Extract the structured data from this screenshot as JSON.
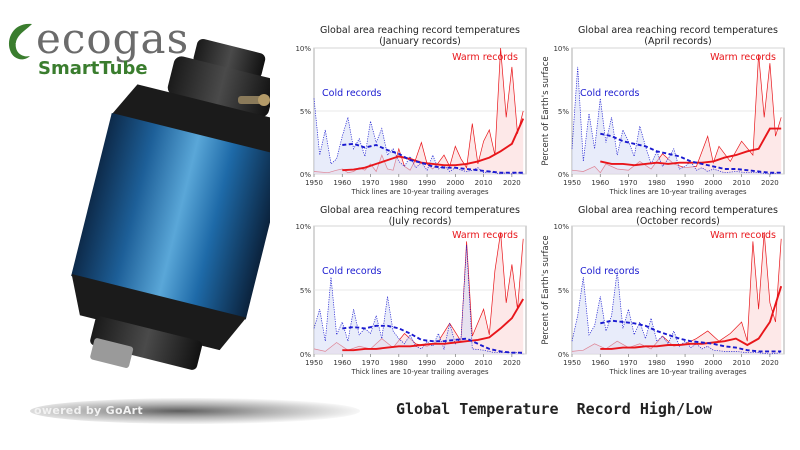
{
  "logo": {
    "word": "ecogas",
    "sub": "SmartTube",
    "mark_color": "#3a7d2e"
  },
  "watermark": "owered by GoArt",
  "caption": "Global Temperature  Record High/Low",
  "colors": {
    "warm": "#e8161b",
    "cold": "#1a1ad0",
    "warm_fill": "#fbd6d6",
    "cold_fill": "#d6dcf6"
  },
  "chart_data": [
    {
      "type": "line",
      "title": "Global area reaching record temperatures",
      "subtitle": "(January records)",
      "ylabel": "",
      "xlabel": "Thick lines are 10-year trailing averages",
      "xlim": [
        1950,
        2025
      ],
      "ylim": [
        0,
        10
      ],
      "xticks": [
        "1950",
        "1960",
        "1970",
        "1980",
        "1990",
        "2000",
        "2010",
        "2020"
      ],
      "yticks": [
        "0%",
        "5%",
        "10%"
      ],
      "annotations": [
        "Warm records",
        "Cold records"
      ],
      "series": [
        {
          "name": "Warm records",
          "style": "thin",
          "x": [
            1950,
            1955,
            1958,
            1960,
            1962,
            1964,
            1966,
            1968,
            1970,
            1972,
            1974,
            1976,
            1978,
            1980,
            1982,
            1984,
            1986,
            1988,
            1990,
            1992,
            1994,
            1996,
            1998,
            2000,
            2002,
            2004,
            2006,
            2008,
            2010,
            2012,
            2014,
            2016,
            2018,
            2020,
            2022,
            2024
          ],
          "y": [
            0.2,
            0.1,
            0.3,
            0.4,
            0.1,
            0.2,
            0.5,
            0.3,
            0.8,
            0.2,
            1.5,
            0.4,
            0.3,
            2.0,
            0.6,
            0.3,
            1.2,
            2.5,
            0.8,
            0.4,
            0.9,
            1.5,
            0.6,
            2.2,
            1.2,
            0.5,
            4.0,
            0.8,
            2.6,
            3.5,
            1.5,
            10.0,
            4.5,
            8.5,
            3.2,
            5.0
          ]
        },
        {
          "name": "Cold records",
          "style": "thin",
          "x": [
            1950,
            1952,
            1954,
            1956,
            1958,
            1960,
            1962,
            1964,
            1966,
            1968,
            1970,
            1972,
            1974,
            1976,
            1978,
            1980,
            1982,
            1984,
            1986,
            1988,
            1990,
            1992,
            1994,
            1996,
            1998,
            2000,
            2002,
            2004,
            2006,
            2008,
            2010,
            2012,
            2014,
            2016,
            2018,
            2020,
            2022,
            2024
          ],
          "y": [
            6.0,
            1.5,
            3.5,
            0.8,
            1.2,
            3.0,
            4.5,
            2.0,
            2.8,
            1.4,
            4.2,
            2.5,
            3.6,
            1.5,
            2.0,
            1.0,
            0.6,
            1.4,
            0.5,
            0.9,
            0.3,
            1.5,
            0.4,
            0.7,
            0.2,
            0.5,
            0.3,
            0.2,
            0.3,
            0.5,
            0.1,
            0.2,
            0.1,
            0.0,
            0.1,
            0.0,
            0.1,
            0.0
          ]
        },
        {
          "name": "Warm records",
          "style": "thick",
          "x": [
            1960,
            1964,
            1968,
            1972,
            1976,
            1980,
            1984,
            1988,
            1992,
            1996,
            2000,
            2004,
            2008,
            2012,
            2016,
            2020,
            2024
          ],
          "y": [
            0.3,
            0.35,
            0.5,
            0.8,
            1.1,
            1.4,
            1.2,
            0.9,
            0.8,
            0.7,
            0.7,
            0.8,
            1.0,
            1.3,
            1.8,
            2.4,
            4.4
          ]
        },
        {
          "name": "Cold records",
          "style": "thick",
          "x": [
            1960,
            1964,
            1968,
            1972,
            1976,
            1980,
            1984,
            1988,
            1992,
            1996,
            2000,
            2004,
            2008,
            2012,
            2016,
            2020,
            2024
          ],
          "y": [
            2.3,
            2.4,
            2.1,
            2.3,
            1.9,
            1.6,
            1.1,
            0.9,
            0.6,
            0.5,
            0.5,
            0.4,
            0.3,
            0.2,
            0.1,
            0.1,
            0.1
          ]
        }
      ]
    },
    {
      "type": "line",
      "title": "Global area reaching record temperatures",
      "subtitle": "(April records)",
      "ylabel": "Percent of Earth's surface",
      "xlabel": "Thick lines are 10-year trailing averages",
      "xlim": [
        1950,
        2025
      ],
      "ylim": [
        0,
        10
      ],
      "xticks": [
        "1950",
        "1960",
        "1970",
        "1980",
        "1990",
        "2000",
        "2010",
        "2020"
      ],
      "yticks": [
        "0%",
        "5%",
        "10%"
      ],
      "annotations": [
        "Warm records",
        "Cold records"
      ],
      "series": [
        {
          "name": "Warm records",
          "style": "thin",
          "x": [
            1950,
            1954,
            1958,
            1960,
            1962,
            1966,
            1970,
            1974,
            1978,
            1982,
            1986,
            1990,
            1994,
            1998,
            2000,
            2002,
            2006,
            2010,
            2014,
            2016,
            2018,
            2020,
            2022,
            2024
          ],
          "y": [
            0.3,
            0.2,
            0.6,
            0.1,
            0.8,
            0.4,
            0.3,
            1.0,
            0.4,
            1.6,
            0.8,
            0.5,
            0.6,
            3.0,
            0.9,
            2.2,
            1.0,
            2.6,
            1.5,
            9.5,
            4.5,
            8.8,
            3.0,
            4.5
          ]
        },
        {
          "name": "Cold records",
          "style": "thin",
          "x": [
            1950,
            1952,
            1954,
            1956,
            1958,
            1960,
            1962,
            1964,
            1966,
            1968,
            1970,
            1972,
            1974,
            1976,
            1978,
            1980,
            1982,
            1984,
            1986,
            1988,
            1990,
            1992,
            1994,
            1996,
            1998,
            2000,
            2004,
            2008,
            2012,
            2016,
            2020,
            2024
          ],
          "y": [
            2.0,
            8.5,
            1.0,
            4.8,
            2.0,
            6.0,
            2.5,
            4.5,
            1.5,
            3.5,
            2.6,
            1.4,
            3.8,
            2.2,
            0.8,
            1.8,
            0.6,
            1.2,
            2.0,
            0.4,
            0.6,
            1.0,
            0.3,
            0.5,
            0.2,
            0.4,
            0.1,
            0.2,
            0.1,
            0.1,
            0.0,
            0.1
          ]
        },
        {
          "name": "Warm records",
          "style": "thick",
          "x": [
            1960,
            1964,
            1968,
            1972,
            1976,
            1980,
            1984,
            1988,
            1992,
            1996,
            2000,
            2004,
            2008,
            2012,
            2016,
            2020,
            2024
          ],
          "y": [
            1.0,
            0.8,
            0.8,
            0.7,
            0.8,
            0.9,
            0.8,
            0.9,
            0.9,
            0.9,
            1.0,
            1.3,
            1.5,
            1.8,
            2.0,
            3.6,
            3.6
          ]
        },
        {
          "name": "Cold records",
          "style": "thick",
          "x": [
            1960,
            1964,
            1968,
            1972,
            1976,
            1980,
            1984,
            1988,
            1992,
            1996,
            2000,
            2004,
            2008,
            2012,
            2016,
            2020,
            2024
          ],
          "y": [
            3.2,
            3.0,
            2.6,
            2.4,
            2.2,
            1.8,
            1.6,
            1.4,
            1.0,
            0.8,
            0.6,
            0.4,
            0.4,
            0.3,
            0.2,
            0.1,
            0.1
          ]
        }
      ]
    },
    {
      "type": "line",
      "title": "Global area reaching record temperatures",
      "subtitle": "(July records)",
      "ylabel": "",
      "xlabel": "Thick lines are 10-year trailing averages",
      "xlim": [
        1950,
        2025
      ],
      "ylim": [
        0,
        10
      ],
      "xticks": [
        "1950",
        "1960",
        "1970",
        "1980",
        "1990",
        "2000",
        "2010",
        "2020"
      ],
      "yticks": [
        "0%",
        "5%",
        "10%"
      ],
      "annotations": [
        "Warm records",
        "Cold records"
      ],
      "series": [
        {
          "name": "Warm records",
          "style": "thin",
          "x": [
            1950,
            1954,
            1958,
            1962,
            1966,
            1970,
            1974,
            1978,
            1982,
            1986,
            1990,
            1994,
            1998,
            2002,
            2004,
            2006,
            2010,
            2012,
            2014,
            2016,
            2018,
            2020,
            2022,
            2024
          ],
          "y": [
            0.4,
            0.2,
            0.9,
            0.3,
            0.6,
            0.4,
            1.2,
            0.5,
            1.6,
            0.8,
            0.6,
            1.0,
            2.4,
            1.0,
            8.8,
            1.4,
            3.5,
            1.5,
            6.5,
            9.5,
            4.0,
            7.0,
            3.5,
            9.0
          ]
        },
        {
          "name": "Cold records",
          "style": "thin",
          "x": [
            1950,
            1952,
            1954,
            1956,
            1958,
            1960,
            1962,
            1964,
            1966,
            1968,
            1970,
            1972,
            1974,
            1976,
            1978,
            1980,
            1982,
            1984,
            1986,
            1988,
            1990,
            1992,
            1994,
            1996,
            1998,
            2000,
            2002,
            2004,
            2006,
            2010,
            2014,
            2018,
            2022,
            2024
          ],
          "y": [
            2.0,
            3.5,
            1.0,
            6.0,
            1.5,
            2.5,
            1.0,
            3.5,
            1.5,
            2.0,
            1.6,
            3.0,
            1.2,
            4.5,
            1.8,
            1.2,
            0.8,
            1.5,
            0.6,
            0.4,
            1.0,
            0.6,
            1.6,
            0.4,
            2.4,
            0.8,
            1.2,
            8.5,
            0.4,
            0.3,
            0.1,
            0.1,
            0.1,
            0.0
          ]
        },
        {
          "name": "Warm records",
          "style": "thick",
          "x": [
            1960,
            1964,
            1968,
            1972,
            1976,
            1980,
            1984,
            1988,
            1992,
            1996,
            2000,
            2004,
            2008,
            2012,
            2016,
            2020,
            2024
          ],
          "y": [
            0.3,
            0.3,
            0.4,
            0.4,
            0.5,
            0.6,
            0.6,
            0.7,
            0.8,
            0.8,
            0.9,
            1.0,
            1.1,
            1.3,
            2.0,
            2.8,
            4.3
          ]
        },
        {
          "name": "Cold records",
          "style": "thick",
          "x": [
            1960,
            1964,
            1968,
            1972,
            1976,
            1980,
            1984,
            1988,
            1992,
            1996,
            2000,
            2004,
            2008,
            2012,
            2016,
            2020,
            2024
          ],
          "y": [
            2.0,
            2.1,
            2.0,
            2.2,
            2.2,
            2.0,
            1.6,
            1.1,
            1.0,
            1.0,
            1.1,
            1.2,
            0.8,
            0.4,
            0.2,
            0.1,
            0.1
          ]
        }
      ]
    },
    {
      "type": "line",
      "title": "Global area reaching record temperatures",
      "subtitle": "(October records)",
      "ylabel": "Percent of Earth's surface",
      "xlabel": "Thick lines are 10-year trailing averages",
      "xlim": [
        1950,
        2025
      ],
      "ylim": [
        0,
        10
      ],
      "xticks": [
        "1950",
        "1960",
        "1970",
        "1980",
        "1990",
        "2000",
        "2010",
        "2020"
      ],
      "yticks": [
        "0%",
        "5%",
        "10%"
      ],
      "annotations": [
        "Warm records",
        "Cold records"
      ],
      "series": [
        {
          "name": "Warm records",
          "style": "thin",
          "x": [
            1950,
            1954,
            1958,
            1962,
            1966,
            1970,
            1974,
            1978,
            1982,
            1986,
            1990,
            1994,
            1998,
            2002,
            2006,
            2010,
            2012,
            2014,
            2016,
            2018,
            2020,
            2022,
            2024
          ],
          "y": [
            0.2,
            0.3,
            0.8,
            0.4,
            1.0,
            0.5,
            0.8,
            0.4,
            1.4,
            0.6,
            0.8,
            1.2,
            1.8,
            1.0,
            1.6,
            2.5,
            1.0,
            8.8,
            3.5,
            9.5,
            4.0,
            2.5,
            9.0
          ]
        },
        {
          "name": "Cold records",
          "style": "thin",
          "x": [
            1950,
            1952,
            1954,
            1956,
            1958,
            1960,
            1962,
            1964,
            1966,
            1968,
            1970,
            1972,
            1974,
            1976,
            1978,
            1980,
            1982,
            1984,
            1986,
            1988,
            1990,
            1992,
            1994,
            1996,
            1998,
            2000,
            2004,
            2008,
            2012,
            2016,
            2020,
            2024
          ],
          "y": [
            1.0,
            3.0,
            6.0,
            1.5,
            2.2,
            4.5,
            1.8,
            3.0,
            6.5,
            2.0,
            3.5,
            1.5,
            2.5,
            1.2,
            2.8,
            1.0,
            1.4,
            0.8,
            1.8,
            0.6,
            1.0,
            0.5,
            0.8,
            0.4,
            0.6,
            0.3,
            0.2,
            0.2,
            0.1,
            0.1,
            0.0,
            0.1
          ]
        },
        {
          "name": "Warm records",
          "style": "thick",
          "x": [
            1960,
            1964,
            1968,
            1972,
            1976,
            1980,
            1984,
            1988,
            1992,
            1996,
            2000,
            2004,
            2008,
            2012,
            2016,
            2020,
            2024
          ],
          "y": [
            0.4,
            0.4,
            0.5,
            0.5,
            0.6,
            0.6,
            0.7,
            0.7,
            0.8,
            0.8,
            0.9,
            1.0,
            1.2,
            0.7,
            1.2,
            2.5,
            5.3
          ]
        },
        {
          "name": "Cold records",
          "style": "thick",
          "x": [
            1960,
            1964,
            1968,
            1972,
            1976,
            1980,
            1984,
            1988,
            1992,
            1996,
            2000,
            2004,
            2008,
            2012,
            2016,
            2020,
            2024
          ],
          "y": [
            2.4,
            2.6,
            2.5,
            2.4,
            2.2,
            1.8,
            1.5,
            1.2,
            1.0,
            0.9,
            0.8,
            0.6,
            0.5,
            0.3,
            0.2,
            0.2,
            0.2
          ]
        }
      ]
    }
  ]
}
